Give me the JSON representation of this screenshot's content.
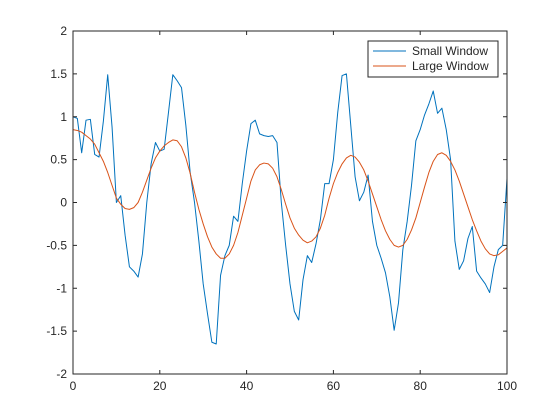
{
  "chart_data": {
    "type": "line",
    "title": "",
    "xlabel": "",
    "ylabel": "",
    "xlim": [
      0,
      100
    ],
    "ylim": [
      -2,
      2
    ],
    "xticks": [
      0,
      20,
      40,
      60,
      80,
      100
    ],
    "yticks": [
      -2,
      -1.5,
      -1,
      -0.5,
      0,
      0.5,
      1,
      1.5,
      2
    ],
    "xtick_labels": [
      "0",
      "20",
      "40",
      "60",
      "80",
      "100"
    ],
    "ytick_labels": [
      "-2",
      "-1.5",
      "-1",
      "-0.5",
      "0",
      "0.5",
      "1",
      "1.5",
      "2"
    ],
    "grid": false,
    "legend_position": "top-right",
    "series": [
      {
        "name": "Small Window",
        "color": "#0072BD",
        "x": [
          0,
          1,
          2,
          3,
          4,
          5,
          6,
          7,
          8,
          9,
          10,
          11,
          12,
          13,
          14,
          15,
          16,
          17,
          18,
          19,
          20,
          21,
          22,
          23,
          24,
          25,
          26,
          27,
          28,
          29,
          30,
          31,
          32,
          33,
          34,
          35,
          36,
          37,
          38,
          39,
          40,
          41,
          42,
          43,
          44,
          45,
          46,
          47,
          48,
          49,
          50,
          51,
          52,
          53,
          54,
          55,
          56,
          57,
          58,
          59,
          60,
          61,
          62,
          63,
          64,
          65,
          66,
          67,
          68,
          69,
          70,
          71,
          72,
          73,
          74,
          75,
          76,
          77,
          78,
          79,
          80,
          81,
          82,
          83,
          84,
          85,
          86,
          87,
          88,
          89,
          90,
          91,
          92,
          93,
          94,
          95,
          96,
          97,
          98,
          99,
          100
        ],
        "y": [
          1.0,
          0.98,
          0.58,
          0.96,
          0.97,
          0.56,
          0.53,
          0.95,
          1.49,
          0.88,
          0.0,
          0.08,
          -0.38,
          -0.75,
          -0.8,
          -0.87,
          -0.6,
          0.0,
          0.45,
          0.7,
          0.6,
          0.62,
          1.05,
          1.49,
          1.42,
          1.34,
          0.9,
          0.35,
          0.0,
          -0.45,
          -0.95,
          -1.3,
          -1.63,
          -1.65,
          -0.85,
          -0.62,
          -0.5,
          -0.16,
          -0.22,
          0.22,
          0.6,
          0.92,
          0.96,
          0.8,
          0.78,
          0.77,
          0.78,
          0.7,
          0.0,
          -0.5,
          -0.95,
          -1.27,
          -1.37,
          -0.9,
          -0.62,
          -0.7,
          -0.48,
          -0.2,
          0.22,
          0.22,
          0.5,
          1.05,
          1.48,
          1.5,
          0.9,
          0.3,
          0.02,
          0.12,
          0.32,
          -0.22,
          -0.5,
          -0.65,
          -0.82,
          -1.1,
          -1.49,
          -1.17,
          -0.55,
          -0.22,
          0.2,
          0.72,
          0.85,
          1.02,
          1.15,
          1.3,
          1.04,
          1.1,
          0.85,
          0.5,
          -0.45,
          -0.78,
          -0.68,
          -0.42,
          -0.28,
          -0.8,
          -0.88,
          -0.95,
          -1.05,
          -0.75,
          -0.55,
          -0.5,
          0.28
        ]
      },
      {
        "name": "Large Window",
        "color": "#D95319",
        "x": [
          0,
          1,
          2,
          3,
          4,
          5,
          6,
          7,
          8,
          9,
          10,
          11,
          12,
          13,
          14,
          15,
          16,
          17,
          18,
          19,
          20,
          21,
          22,
          23,
          24,
          25,
          26,
          27,
          28,
          29,
          30,
          31,
          32,
          33,
          34,
          35,
          36,
          37,
          38,
          39,
          40,
          41,
          42,
          43,
          44,
          45,
          46,
          47,
          48,
          49,
          50,
          51,
          52,
          53,
          54,
          55,
          56,
          57,
          58,
          59,
          60,
          61,
          62,
          63,
          64,
          65,
          66,
          67,
          68,
          69,
          70,
          71,
          72,
          73,
          74,
          75,
          76,
          77,
          78,
          79,
          80,
          81,
          82,
          83,
          84,
          85,
          86,
          87,
          88,
          89,
          90,
          91,
          92,
          93,
          94,
          95,
          96,
          97,
          98,
          99,
          100
        ],
        "y": [
          0.85,
          0.84,
          0.82,
          0.78,
          0.74,
          0.68,
          0.58,
          0.48,
          0.35,
          0.2,
          0.05,
          -0.02,
          -0.07,
          -0.08,
          -0.06,
          0.0,
          0.12,
          0.26,
          0.4,
          0.52,
          0.6,
          0.66,
          0.7,
          0.73,
          0.72,
          0.65,
          0.52,
          0.34,
          0.12,
          -0.08,
          -0.25,
          -0.4,
          -0.52,
          -0.6,
          -0.65,
          -0.65,
          -0.6,
          -0.5,
          -0.35,
          -0.15,
          0.05,
          0.25,
          0.38,
          0.44,
          0.46,
          0.45,
          0.4,
          0.3,
          0.15,
          -0.02,
          -0.18,
          -0.3,
          -0.38,
          -0.44,
          -0.47,
          -0.45,
          -0.4,
          -0.3,
          -0.15,
          0.05,
          0.22,
          0.35,
          0.45,
          0.52,
          0.55,
          0.53,
          0.47,
          0.38,
          0.25,
          0.1,
          -0.05,
          -0.2,
          -0.33,
          -0.43,
          -0.5,
          -0.52,
          -0.5,
          -0.43,
          -0.32,
          -0.18,
          0.0,
          0.18,
          0.35,
          0.48,
          0.56,
          0.58,
          0.55,
          0.48,
          0.38,
          0.25,
          0.1,
          -0.05,
          -0.2,
          -0.33,
          -0.45,
          -0.54,
          -0.6,
          -0.62,
          -0.61,
          -0.57,
          -0.53
        ]
      }
    ]
  }
}
